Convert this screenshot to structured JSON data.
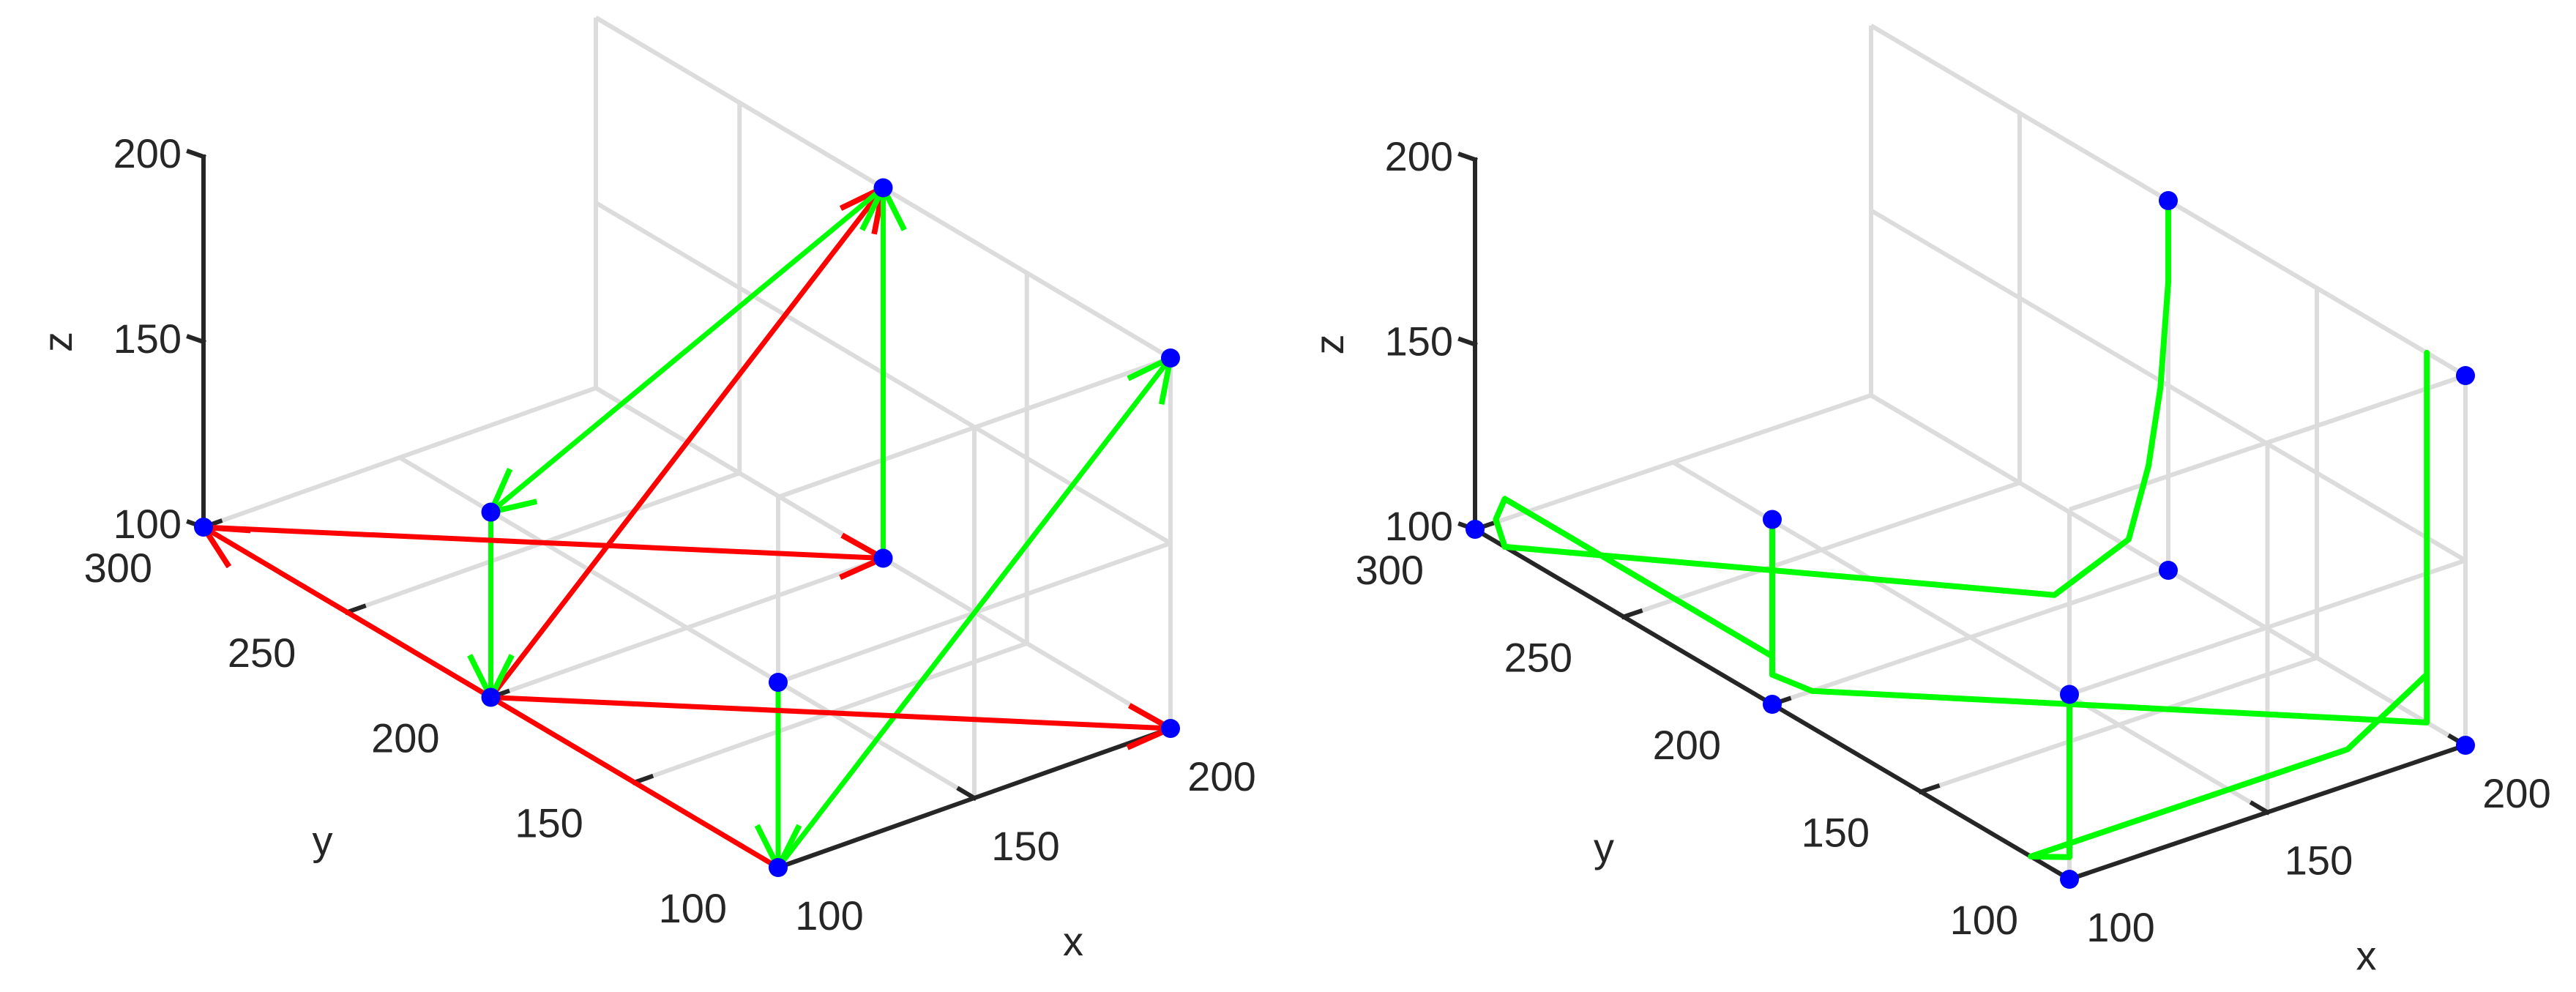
{
  "chart_data": [
    {
      "type": "line3d",
      "xlabel": "x",
      "ylabel": "y",
      "zlabel": "z",
      "xlim": [
        100,
        200
      ],
      "ylim": [
        100,
        300
      ],
      "zlim": [
        100,
        200
      ],
      "xticks": [
        "100",
        "150",
        "200"
      ],
      "yticks": [
        "100",
        "150",
        "200",
        "250",
        "300"
      ],
      "zticks": [
        "100",
        "150",
        "200"
      ],
      "grid": true,
      "colors": {
        "points": "#0000ff",
        "horizontal": "#ff0000",
        "vertical": "#00ff00"
      },
      "points": [
        [
          100,
          300,
          100
        ],
        [
          100,
          100,
          100
        ],
        [
          100,
          100,
          150
        ],
        [
          100,
          200,
          100
        ],
        [
          100,
          200,
          150
        ],
        [
          200,
          200,
          100
        ],
        [
          200,
          200,
          200
        ],
        [
          200,
          100,
          100
        ],
        [
          200,
          100,
          200
        ]
      ],
      "segments": [
        {
          "from": [
            100,
            100,
            150
          ],
          "to": [
            100,
            100,
            100
          ],
          "color": "vertical"
        },
        {
          "from": [
            100,
            100,
            100
          ],
          "to": [
            200,
            100,
            200
          ],
          "color": "vertical"
        },
        {
          "from": [
            100,
            200,
            100
          ],
          "to": [
            200,
            200,
            200
          ],
          "color": "horizontal"
        },
        {
          "from": [
            200,
            200,
            200
          ],
          "to": [
            100,
            200,
            150
          ],
          "color": "vertical"
        },
        {
          "from": [
            100,
            200,
            150
          ],
          "to": [
            100,
            200,
            100
          ],
          "color": "vertical"
        },
        {
          "from": [
            100,
            200,
            100
          ],
          "to": [
            200,
            100,
            100
          ],
          "color": "horizontal"
        },
        {
          "from": [
            100,
            100,
            100
          ],
          "to": [
            100,
            300,
            100
          ],
          "color": "horizontal"
        },
        {
          "from": [
            100,
            300,
            100
          ],
          "to": [
            200,
            200,
            100
          ],
          "color": "horizontal"
        },
        {
          "from": [
            200,
            200,
            100
          ],
          "to": [
            200,
            200,
            200
          ],
          "color": "vertical"
        }
      ]
    },
    {
      "type": "line3d",
      "xlabel": "x",
      "ylabel": "y",
      "zlabel": "z",
      "xlim": [
        100,
        200
      ],
      "ylim": [
        100,
        300
      ],
      "zlim": [
        100,
        200
      ],
      "xticks": [
        "100",
        "150",
        "200"
      ],
      "yticks": [
        "100",
        "150",
        "200",
        "250",
        "300"
      ],
      "zticks": [
        "100",
        "150",
        "200"
      ],
      "grid": true,
      "colors": {
        "points": "#0000ff",
        "path": "#00ff00"
      },
      "points": [
        [
          100,
          300,
          100
        ],
        [
          100,
          100,
          100
        ],
        [
          100,
          100,
          150
        ],
        [
          100,
          200,
          100
        ],
        [
          100,
          200,
          150
        ],
        [
          200,
          200,
          100
        ],
        [
          200,
          200,
          200
        ],
        [
          200,
          100,
          100
        ],
        [
          200,
          100,
          200
        ]
      ],
      "path": [
        [
          200,
          200,
          200
        ],
        [
          200,
          200,
          178
        ],
        [
          198,
          200,
          150
        ],
        [
          195,
          200,
          130
        ],
        [
          190,
          200,
          112
        ],
        [
          175,
          205,
          100
        ],
        [
          100,
          290,
          100
        ],
        [
          100,
          293,
          106
        ],
        [
          100,
          290,
          113
        ],
        [
          100,
          260,
          113
        ],
        [
          100,
          200,
          113
        ],
        [
          100,
          200,
          150
        ],
        [
          100,
          200,
          108
        ],
        [
          110,
          200,
          100
        ],
        [
          200,
          113,
          100
        ],
        [
          200,
          113,
          110
        ],
        [
          200,
          113,
          200
        ],
        [
          200,
          113,
          113
        ],
        [
          180,
          113,
          100
        ],
        [
          100,
          113,
          100
        ],
        [
          100,
          100,
          106
        ],
        [
          100,
          100,
          150
        ]
      ]
    }
  ]
}
